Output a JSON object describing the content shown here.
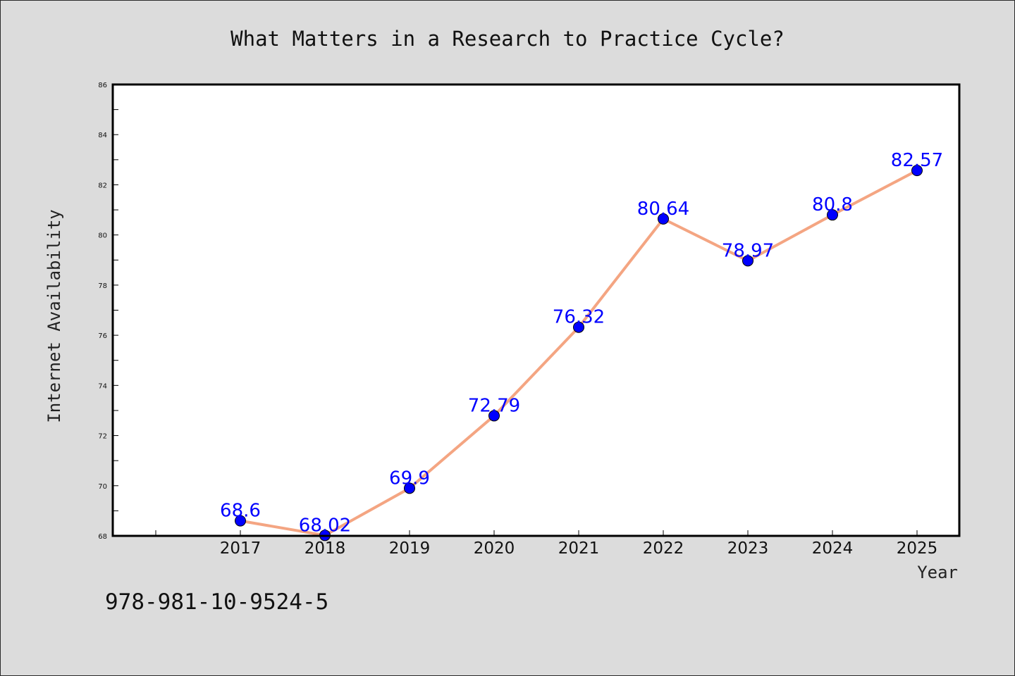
{
  "chart_data": {
    "type": "line",
    "title": "What Matters in a Research to Practice Cycle?",
    "xlabel": "Year",
    "ylabel": "Internet Availability",
    "categories": [
      "2017",
      "2018",
      "2019",
      "2020",
      "2021",
      "2022",
      "2023",
      "2024",
      "2025"
    ],
    "values": [
      68.6,
      68.02,
      69.9,
      72.79,
      76.32,
      80.64,
      78.97,
      80.8,
      82.57
    ],
    "data_labels": [
      "68.6",
      "68.02",
      "69.9",
      "72.79",
      "76.32",
      "80.64",
      "78.97",
      "80.8",
      "82.57"
    ],
    "ylim": [
      68,
      86
    ],
    "yticks": [
      "68",
      "70",
      "72",
      "74",
      "76",
      "78",
      "80",
      "82",
      "84",
      "86"
    ],
    "line_color": "#f4a582",
    "marker_color": "#0000ff",
    "label_color": "#0000ff",
    "grid": false,
    "legend": "none"
  },
  "footer": {
    "isbn": "978-981-10-9524-5"
  }
}
